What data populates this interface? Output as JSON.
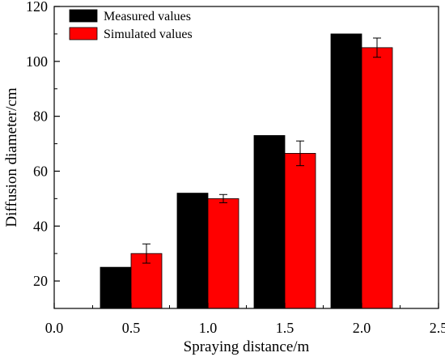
{
  "chart_data": {
    "type": "bar",
    "title": "",
    "xlabel": "Spraying distance/m",
    "ylabel": "Diffusion diameter/cm",
    "x_ticks": [
      "0.0",
      "0.5",
      "1.0",
      "1.5",
      "2.0",
      "2.5"
    ],
    "x_tick_values": [
      0.0,
      0.5,
      1.0,
      1.5,
      2.0,
      2.5
    ],
    "xlim": [
      0.0,
      2.5
    ],
    "y_ticks": [
      "20",
      "40",
      "60",
      "80",
      "100",
      "120"
    ],
    "y_tick_values": [
      20,
      40,
      60,
      80,
      100,
      120
    ],
    "ylim": [
      10,
      120
    ],
    "grid": false,
    "legend_position": "top-left",
    "categories": [
      0.5,
      1.0,
      1.5,
      2.0
    ],
    "series": [
      {
        "name": "Measured values",
        "color": "#000000",
        "values": [
          25,
          52,
          73,
          110
        ]
      },
      {
        "name": "Simulated values",
        "color": "#ff0000",
        "values": [
          30,
          50,
          66.5,
          105
        ],
        "errors": [
          3.5,
          1.5,
          4.5,
          3.5
        ]
      }
    ]
  }
}
